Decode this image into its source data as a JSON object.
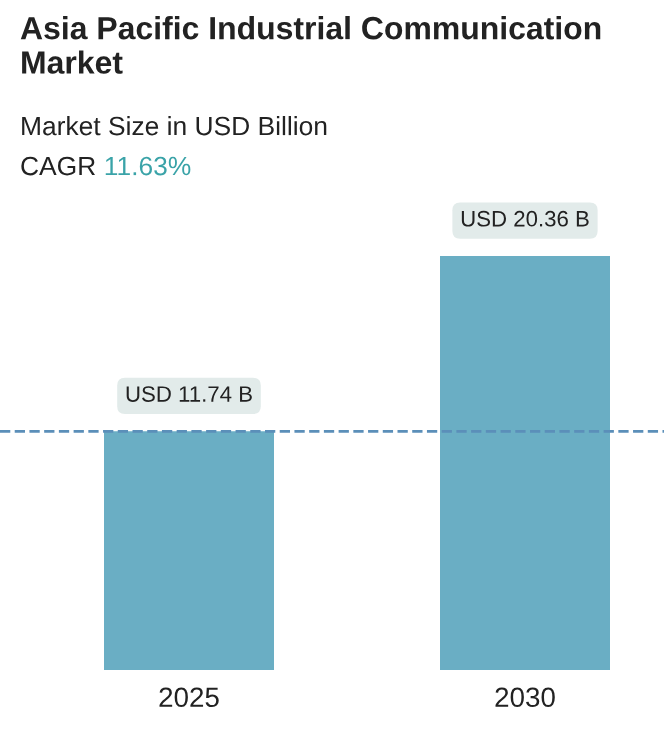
{
  "chart_data": {
    "type": "bar",
    "title": "Asia Pacific Industrial Communication Market",
    "subtitle": "Market Size in USD Billion",
    "annotations": [
      "CAGR 11.63%"
    ],
    "categories": [
      "2025",
      "2030"
    ],
    "values": [
      11.74,
      20.36
    ],
    "value_labels": [
      "USD 11.74 B",
      "USD 20.36 B"
    ],
    "color": "#6aaec4",
    "ref_lines": [
      {
        "axis": "y",
        "value": 11.74,
        "label": null,
        "color": "#5b8fb9",
        "line_style": "dashed"
      }
    ],
    "grid": false
  }
}
